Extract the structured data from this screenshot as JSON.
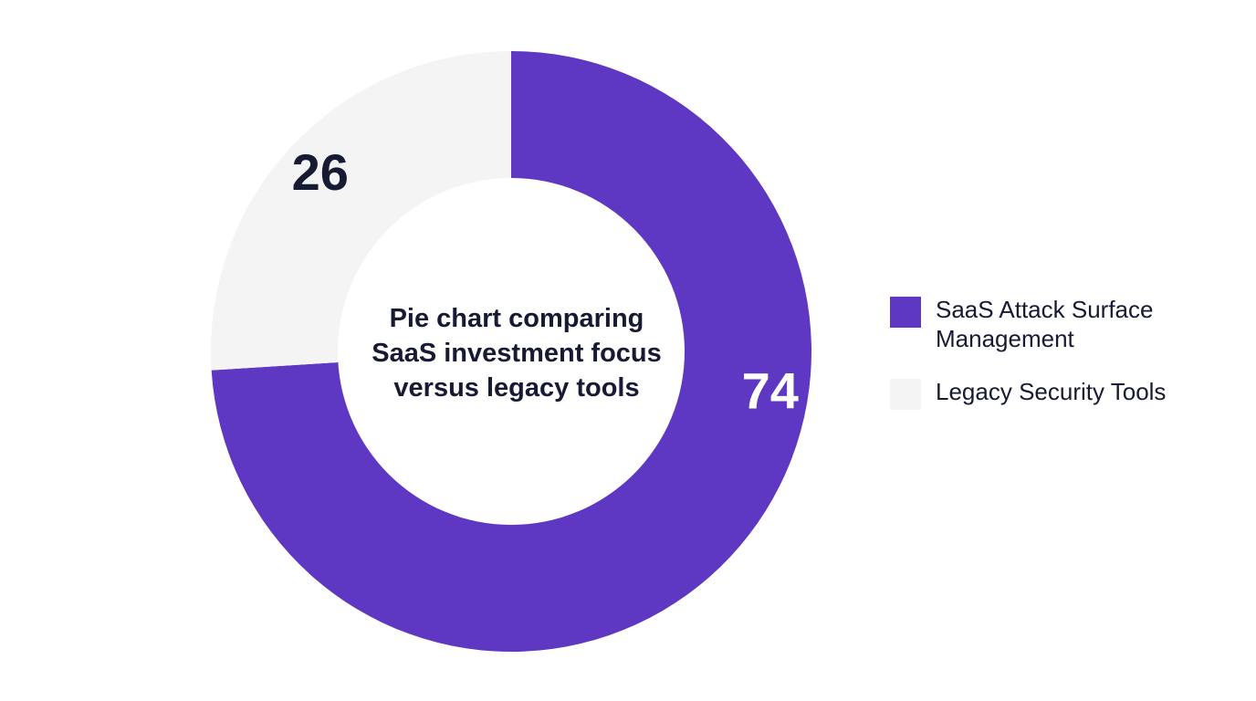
{
  "chart_data": {
    "type": "pie",
    "subtype": "donut",
    "center_text": [
      "Pie chart comparing",
      "SaaS investment focus",
      "versus legacy tools"
    ],
    "slices": [
      {
        "name": "SaaS Attack Surface Management",
        "value": 74,
        "color": "#5e37c2",
        "label_color": "#ffffff"
      },
      {
        "name": "Legacy Security Tools",
        "value": 26,
        "color": "#f4f4f4",
        "label_color": "#161a33"
      }
    ],
    "legend_position": "right"
  }
}
